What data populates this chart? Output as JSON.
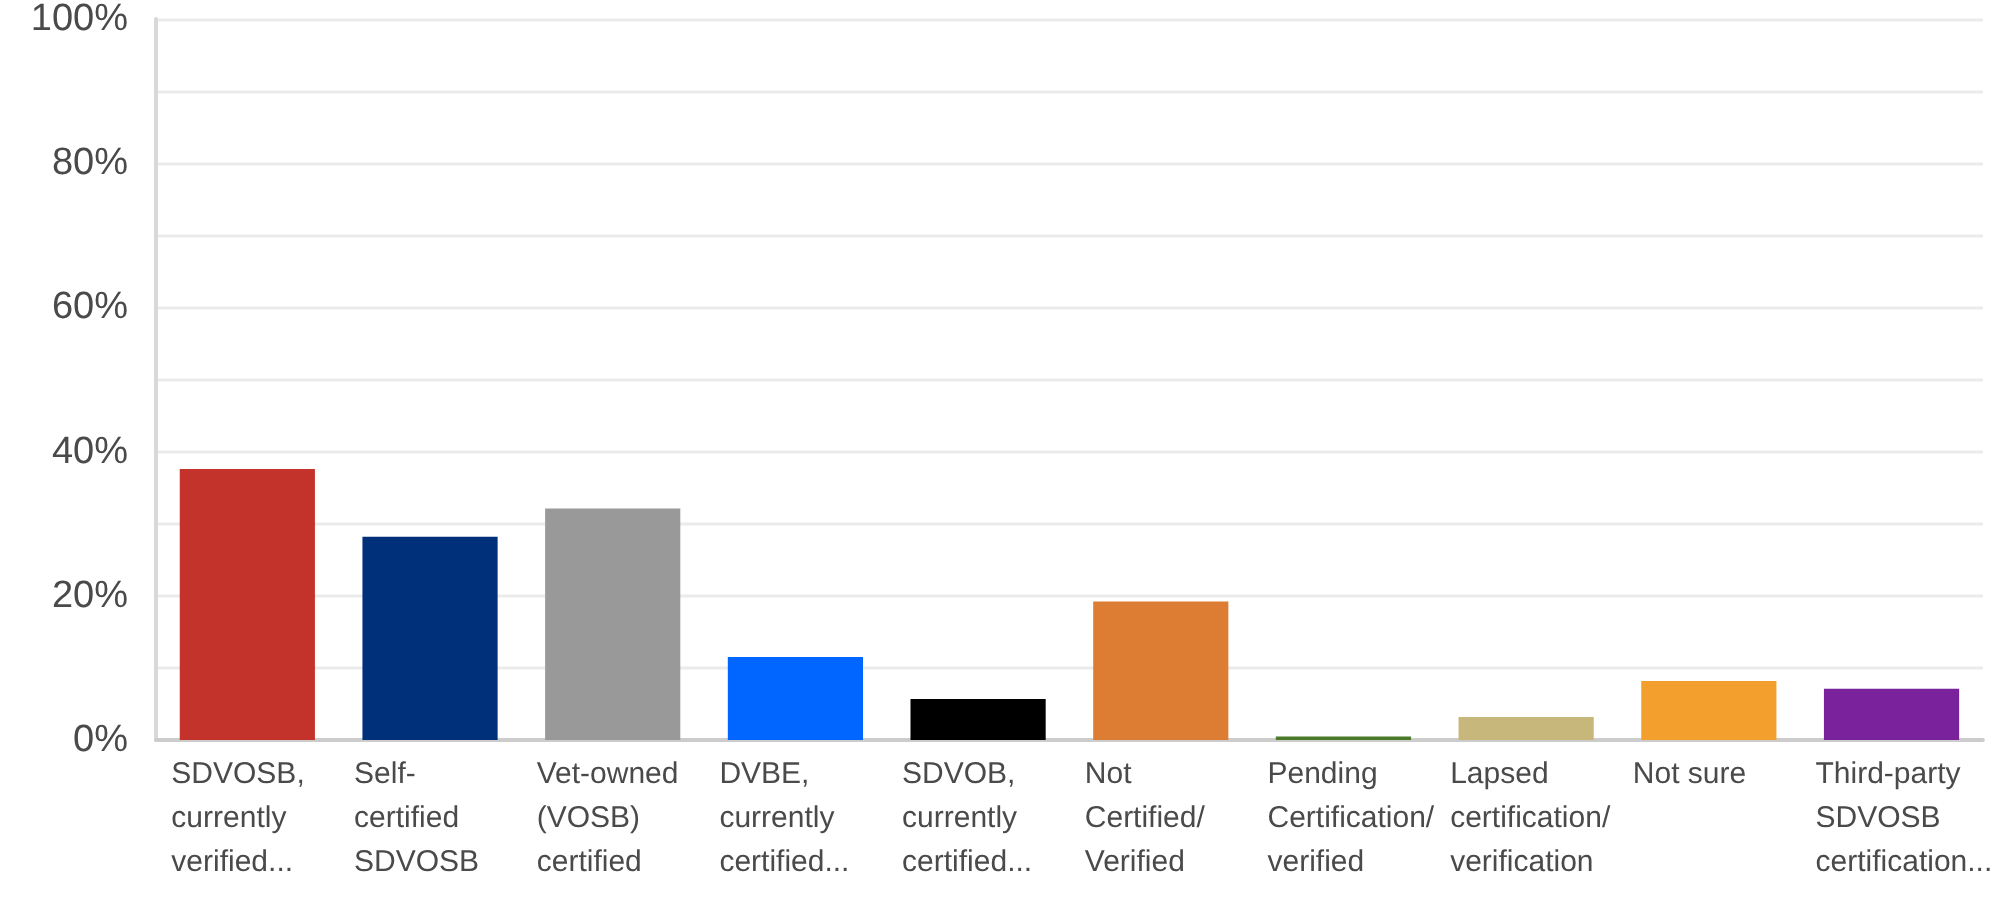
{
  "chart_data": {
    "type": "bar",
    "categories": [
      "SDVOSB, currently verified...",
      "Self-certified SDVOSB",
      "Vet-owned (VOSB) certified",
      "DVBE, currently certified...",
      "SDVOB, currently certified...",
      "Not Certified/Verified",
      "Pending Certification/verified",
      "Lapsed certification/verification",
      "Not sure",
      "Third-party SDVOSB certification..."
    ],
    "values": [
      37.6,
      28.2,
      32.1,
      11.5,
      5.7,
      19.2,
      0.5,
      3.2,
      8.2,
      7.1
    ],
    "colors": [
      "#c4332b",
      "#00307a",
      "#999999",
      "#0066ff",
      "#000000",
      "#dd7d33",
      "#4a7a2a",
      "#c8b77b",
      "#f29f2e",
      "#7a219c"
    ],
    "ylim": [
      0,
      100
    ],
    "yticks": [
      {
        "value": 0,
        "label": "0%"
      },
      {
        "value": 10,
        "label": null
      },
      {
        "value": 20,
        "label": "20%"
      },
      {
        "value": 30,
        "label": null
      },
      {
        "value": 40,
        "label": "40%"
      },
      {
        "value": 50,
        "label": null
      },
      {
        "value": 60,
        "label": "60%"
      },
      {
        "value": 70,
        "label": null
      },
      {
        "value": 80,
        "label": "80%"
      },
      {
        "value": 90,
        "label": null
      },
      {
        "value": 100,
        "label": "100%"
      }
    ],
    "grid": "y"
  }
}
